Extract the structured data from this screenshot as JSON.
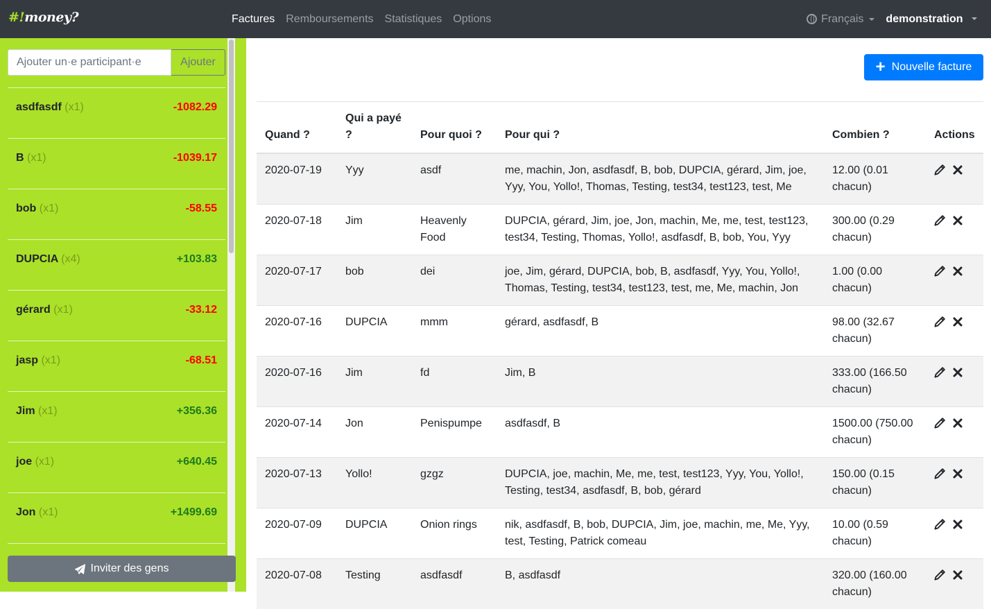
{
  "navbar": {
    "brand_prefix": "#!",
    "brand_name": "money?",
    "links": [
      "Factures",
      "Remboursements",
      "Statistiques",
      "Options"
    ],
    "active_link": "Factures",
    "language": "Français",
    "user": "demonstration"
  },
  "sidebar": {
    "add_placeholder": "Ajouter un·e participant·e",
    "add_button": "Ajouter",
    "invite_button": "Inviter des gens",
    "participants": [
      {
        "name": "asdfasdf",
        "mult": "(x1)",
        "balance": "-1082.29",
        "sign": "neg"
      },
      {
        "name": "B",
        "mult": "(x1)",
        "balance": "-1039.17",
        "sign": "neg"
      },
      {
        "name": "bob",
        "mult": "(x1)",
        "balance": "-58.55",
        "sign": "neg"
      },
      {
        "name": "DUPCIA",
        "mult": "(x4)",
        "balance": "+103.83",
        "sign": "pos"
      },
      {
        "name": "gérard",
        "mult": "(x1)",
        "balance": "-33.12",
        "sign": "neg"
      },
      {
        "name": "jasp",
        "mult": "(x1)",
        "balance": "-68.51",
        "sign": "neg"
      },
      {
        "name": "Jim",
        "mult": "(x1)",
        "balance": "+356.36",
        "sign": "pos"
      },
      {
        "name": "joe",
        "mult": "(x1)",
        "balance": "+640.45",
        "sign": "pos"
      },
      {
        "name": "Jon",
        "mult": "(x1)",
        "balance": "+1499.69",
        "sign": "pos"
      }
    ]
  },
  "main": {
    "new_bill_button": "Nouvelle facture",
    "headers": {
      "when": "Quand ?",
      "who": "Qui a payé ?",
      "what": "Pour quoi ?",
      "for_whom": "Pour qui ?",
      "amount": "Combien ?",
      "actions": "Actions"
    },
    "bills": [
      {
        "when": "2020-07-19",
        "who": "Yyy",
        "what": "asdf",
        "for_whom": "me, machin, Jon, asdfasdf, B, bob, DUPCIA, gérard, Jim, joe, Yyy, You, Yollo!, Thomas, Testing, test34, test123, test, Me",
        "amount": "12.00 (0.01 chacun)"
      },
      {
        "when": "2020-07-18",
        "who": "Jim",
        "what": "Heavenly Food",
        "for_whom": "DUPCIA, gérard, Jim, joe, Jon, machin, Me, me, test, test123, test34, Testing, Thomas, Yollo!, asdfasdf, B, bob, You, Yyy",
        "amount": "300.00 (0.29 chacun)"
      },
      {
        "when": "2020-07-17",
        "who": "bob",
        "what": "dei",
        "for_whom": "joe, Jim, gérard, DUPCIA, bob, B, asdfasdf, Yyy, You, Yollo!, Thomas, Testing, test34, test123, test, me, Me, machin, Jon",
        "amount": "1.00 (0.00 chacun)"
      },
      {
        "when": "2020-07-16",
        "who": "DUPCIA",
        "what": "mmm",
        "for_whom": "gérard, asdfasdf, B",
        "amount": "98.00 (32.67 chacun)"
      },
      {
        "when": "2020-07-16",
        "who": "Jim",
        "what": "fd",
        "for_whom": "Jim, B",
        "amount": "333.00 (166.50 chacun)"
      },
      {
        "when": "2020-07-14",
        "who": "Jon",
        "what": "Penispumpe",
        "for_whom": "asdfasdf, B",
        "amount": "1500.00 (750.00 chacun)"
      },
      {
        "when": "2020-07-13",
        "who": "Yollo!",
        "what": "gzgz",
        "for_whom": "DUPCIA, joe, machin, Me, me, test, test123, Yyy, You, Yollo!, Testing, test34, asdfasdf, B, bob, gérard",
        "amount": "150.00 (0.15 chacun)"
      },
      {
        "when": "2020-07-09",
        "who": "DUPCIA",
        "what": "Onion rings",
        "for_whom": "nik, asdfasdf, B, bob, DUPCIA, Jim, joe, machin, me, Me, Yyy, test, Testing, Patrick comeau",
        "amount": "10.00 (0.59 chacun)"
      },
      {
        "when": "2020-07-08",
        "who": "Testing",
        "what": "asdfasdf",
        "for_whom": "B, asdfasdf",
        "amount": "320.00 (160.00 chacun)"
      }
    ]
  },
  "colors": {
    "navbar": "#343a40",
    "sidebar": "#abe128",
    "primary": "#007bff",
    "negative": "#ff0000",
    "positive": "#1d7a1d"
  },
  "icons": {
    "edit": "pencil-icon",
    "delete": "close-icon",
    "invite": "paper-plane-icon",
    "language": "globe-icon",
    "new": "plus-icon"
  }
}
